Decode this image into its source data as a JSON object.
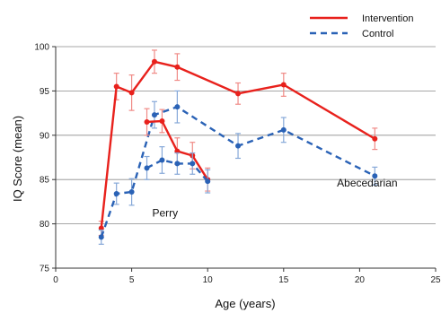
{
  "chart_data": {
    "type": "line",
    "xlabel": "Age (years)",
    "ylabel": "IQ Score (mean)",
    "xlim": [
      0,
      25
    ],
    "ylim": [
      75,
      100
    ],
    "xticks": [
      0,
      5,
      10,
      15,
      20,
      25
    ],
    "yticks": [
      75,
      80,
      85,
      90,
      95,
      100
    ],
    "grid": "horizontal",
    "legend_position": "top-right",
    "series": [
      {
        "name": "Intervention",
        "study": "Abecedarian",
        "style": "solid",
        "color": "#e8211c",
        "x": [
          3,
          4,
          5,
          6.5,
          8,
          12,
          15,
          21
        ],
        "y": [
          79.5,
          95.5,
          94.8,
          98.3,
          97.7,
          94.7,
          95.7,
          89.6
        ],
        "err": [
          0.8,
          1.5,
          2.0,
          1.3,
          1.5,
          1.2,
          1.3,
          1.2
        ]
      },
      {
        "name": "Control",
        "study": "Abecedarian",
        "style": "dashed",
        "color": "#2a62b6",
        "x": [
          3,
          4,
          5,
          6.5,
          8,
          12,
          15,
          21
        ],
        "y": [
          78.5,
          83.4,
          83.6,
          92.3,
          93.2,
          88.8,
          90.6,
          85.4
        ],
        "err": [
          0.8,
          1.2,
          1.5,
          1.5,
          1.8,
          1.4,
          1.4,
          1.0
        ]
      },
      {
        "name": "Intervention",
        "study": "Perry",
        "style": "solid",
        "color": "#e8211c",
        "x": [
          6,
          7,
          8,
          9,
          10
        ],
        "y": [
          91.5,
          91.6,
          88.2,
          87.7,
          85.0
        ],
        "err": [
          1.5,
          1.3,
          1.5,
          1.5,
          1.3
        ]
      },
      {
        "name": "Control",
        "study": "Perry",
        "style": "dashed",
        "color": "#2a62b6",
        "x": [
          6,
          7,
          8,
          9,
          10
        ],
        "y": [
          86.3,
          87.2,
          86.8,
          86.8,
          84.8
        ],
        "err": [
          1.3,
          1.5,
          1.2,
          1.2,
          1.3
        ]
      }
    ],
    "legend": [
      {
        "label": "Intervention",
        "style": "solid",
        "color": "#e8211c"
      },
      {
        "label": "Control",
        "style": "dashed",
        "color": "#2a62b6"
      }
    ],
    "annotations": [
      {
        "text": "Perry",
        "x": 7.2,
        "y": 80.8
      },
      {
        "text": "Abecedarian",
        "x": 20.5,
        "y": 84.2
      }
    ]
  }
}
